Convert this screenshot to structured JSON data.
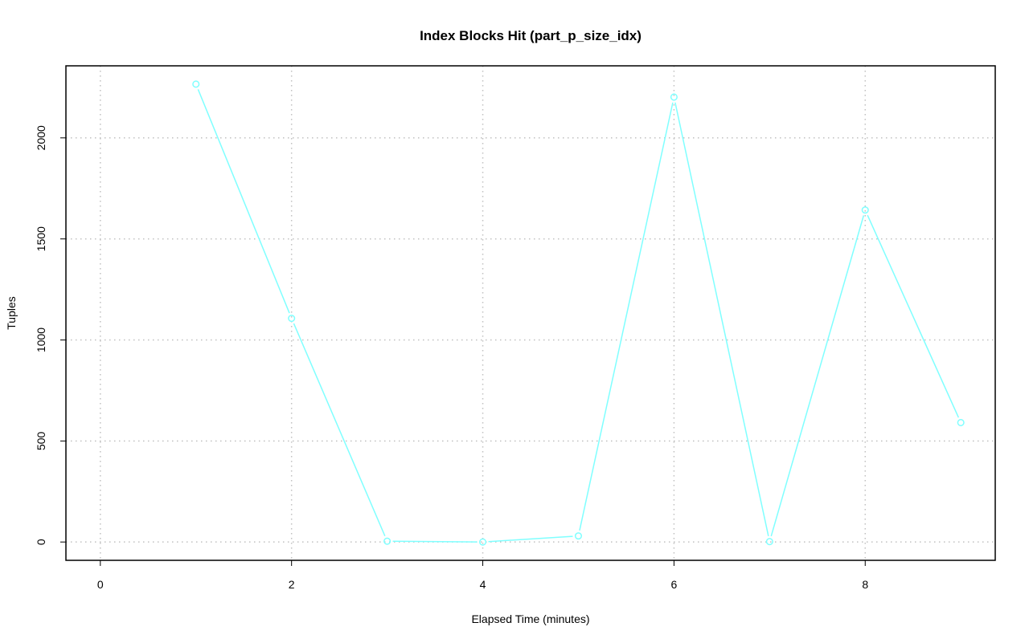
{
  "chart_data": {
    "type": "line",
    "title": "Index Blocks Hit (part_p_size_idx)",
    "xlabel": "Elapsed Time (minutes)",
    "ylabel": "Tuples",
    "xlim": [
      0,
      9
    ],
    "ylim": [
      0,
      2266
    ],
    "xticks": [
      0,
      2,
      4,
      6,
      8
    ],
    "yticks": [
      0,
      500,
      1000,
      1500,
      2000
    ],
    "grid": true,
    "series": [
      {
        "x": [
          1,
          2,
          3,
          4,
          5,
          6,
          7,
          8,
          9
        ],
        "values": [
          2266,
          1107,
          4,
          0,
          30,
          2202,
          2,
          1643,
          591
        ],
        "color": "#80FFFF",
        "marker": "open-circle"
      }
    ]
  }
}
